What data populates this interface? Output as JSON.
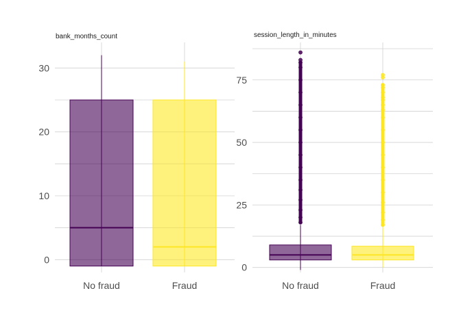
{
  "chart_data": [
    {
      "type": "box",
      "title": "bank_months_count",
      "categories": [
        "No fraud",
        "Fraud"
      ],
      "ylim": [
        -2,
        34
      ],
      "yticks": [
        0,
        10,
        20,
        30
      ],
      "grid": true,
      "legend": "none",
      "boxes": [
        {
          "category": "No fraud",
          "min": -1,
          "q1": -1,
          "median": 5,
          "q3": 25,
          "max": 32,
          "outliers": [],
          "fill": "#440154",
          "stroke": "#440154"
        },
        {
          "category": "Fraud",
          "min": -1,
          "q1": -1,
          "median": 2,
          "q3": 25,
          "max": 31,
          "outliers": [],
          "fill": "#fde725",
          "stroke": "#fde725"
        }
      ]
    },
    {
      "type": "box",
      "title": "session_length_in_minutes",
      "categories": [
        "No fraud",
        "Fraud"
      ],
      "ylim": [
        -2,
        90
      ],
      "yticks": [
        0,
        25,
        50,
        75
      ],
      "grid": true,
      "legend": "none",
      "boxes": [
        {
          "category": "No fraud",
          "min": -1,
          "q1": 3,
          "median": 5,
          "q3": 9,
          "max": 17,
          "outliers": [
            18,
            20,
            23,
            27,
            31,
            35,
            40,
            45,
            50,
            55,
            60,
            65,
            70,
            75,
            80,
            82,
            83,
            86
          ],
          "fill": "#440154",
          "stroke": "#440154"
        },
        {
          "category": "Fraud",
          "min": 0,
          "q1": 3,
          "median": 5,
          "q3": 8.5,
          "max": 16,
          "outliers": [
            17,
            19,
            22,
            26,
            30,
            35,
            40,
            45,
            50,
            55,
            60,
            63,
            65,
            67,
            68,
            70,
            72,
            73,
            76,
            77
          ],
          "fill": "#fde725",
          "stroke": "#fde725"
        }
      ]
    }
  ]
}
